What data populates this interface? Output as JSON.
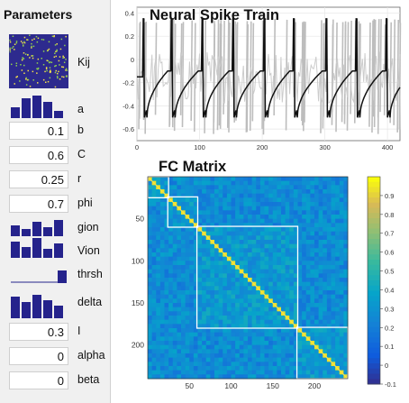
{
  "parameters_panel": {
    "title": "Parameters",
    "fields": [
      {
        "label": "Kij",
        "kind": "matrix"
      },
      {
        "label": "a",
        "kind": "histogram"
      },
      {
        "label": "b",
        "kind": "value",
        "value": "0.1"
      },
      {
        "label": "C",
        "kind": "value",
        "value": "0.6"
      },
      {
        "label": "r",
        "kind": "value",
        "value": "0.25"
      },
      {
        "label": "phi",
        "kind": "value",
        "value": "0.7"
      },
      {
        "label": "gion",
        "kind": "histogram"
      },
      {
        "label": "Vion",
        "kind": "histogram"
      },
      {
        "label": "thrsh",
        "kind": "histogram"
      },
      {
        "label": "delta",
        "kind": "histogram"
      },
      {
        "label": "I",
        "kind": "value",
        "value": "0.3"
      },
      {
        "label": "alpha",
        "kind": "value",
        "value": "0"
      },
      {
        "label": "beta",
        "kind": "value",
        "value": "0"
      }
    ]
  },
  "spike_train": {
    "title": "Neural Spike Train",
    "x_ticks": [
      "0",
      "100",
      "200",
      "300",
      "400"
    ],
    "y_ticks": [
      "0.4",
      "0.2",
      "0",
      "-0.2",
      "-0.4",
      "-0.6"
    ],
    "colors": {
      "trace": "#111111",
      "background_traces": "#c4c4c4"
    }
  },
  "fc_matrix": {
    "title": "FC Matrix",
    "x_ticks": [
      "50",
      "100",
      "150",
      "200"
    ],
    "y_ticks": [
      "50",
      "100",
      "150",
      "200"
    ],
    "colorbar_ticks": [
      "0.9",
      "0.8",
      "0.7",
      "0.6",
      "0.5",
      "0.4",
      "0.3",
      "0.2",
      "0.1",
      "0",
      "-0.1"
    ],
    "colormap": "parula"
  },
  "chart_data": [
    {
      "type": "line",
      "title": "Neural Spike Train",
      "xlabel": "",
      "ylabel": "",
      "xlim": [
        0,
        420
      ],
      "ylim": [
        -0.7,
        0.45
      ],
      "grid": true,
      "spike_times": [
        10,
        55,
        104,
        153,
        203,
        250,
        302,
        350,
        398
      ],
      "spike_peak": 0.35,
      "baseline_min": -0.5,
      "pre_spike_level": -0.1
    },
    {
      "type": "heatmap",
      "title": "FC Matrix",
      "xlabel": "",
      "ylabel": "",
      "size": 240,
      "clim": [
        -0.1,
        1.0
      ],
      "diagonal_value": 1.0,
      "module_boundaries": [
        [
          1,
          25
        ],
        [
          25,
          60
        ],
        [
          60,
          180
        ],
        [
          180,
          240
        ]
      ]
    }
  ]
}
